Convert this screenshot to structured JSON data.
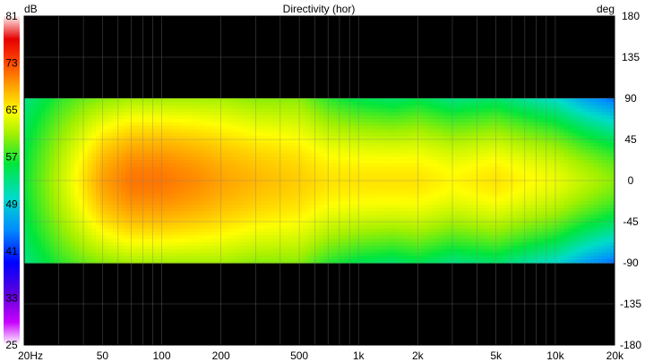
{
  "chart_data": {
    "type": "heatmap",
    "title": "Directivity (hor)",
    "colorbar_unit": "dB",
    "y_unit": "deg",
    "x_scale": "log",
    "xlim": [
      20,
      20000
    ],
    "ylim": [
      -180,
      180
    ],
    "x_ticks": [
      {
        "value": 20,
        "label": "20Hz"
      },
      {
        "value": 50,
        "label": "50"
      },
      {
        "value": 100,
        "label": "100"
      },
      {
        "value": 200,
        "label": "200"
      },
      {
        "value": 500,
        "label": "500"
      },
      {
        "value": 1000,
        "label": "1k"
      },
      {
        "value": 2000,
        "label": "2k"
      },
      {
        "value": 5000,
        "label": "5k"
      },
      {
        "value": 10000,
        "label": "10k"
      },
      {
        "value": 20000,
        "label": "20k"
      }
    ],
    "y_ticks": [
      {
        "value": 180,
        "label": "180"
      },
      {
        "value": 135,
        "label": "135"
      },
      {
        "value": 90,
        "label": "90"
      },
      {
        "value": 45,
        "label": "45"
      },
      {
        "value": 0,
        "label": "0"
      },
      {
        "value": -45,
        "label": "-45"
      },
      {
        "value": -90,
        "label": "-90"
      },
      {
        "value": -135,
        "label": "-135"
      },
      {
        "value": -180,
        "label": "-180"
      }
    ],
    "color_ticks": [
      {
        "value": 81,
        "label": "81"
      },
      {
        "value": 73,
        "label": "73"
      },
      {
        "value": 65,
        "label": "65"
      },
      {
        "value": 57,
        "label": "57"
      },
      {
        "value": 49,
        "label": "49"
      },
      {
        "value": 41,
        "label": "41"
      },
      {
        "value": 33,
        "label": "33"
      },
      {
        "value": 25,
        "label": "25"
      }
    ],
    "color_range": [
      25,
      81
    ],
    "data_angle_range": [
      -90,
      90
    ],
    "freq_samples": [
      20,
      30,
      40,
      50,
      70,
      100,
      150,
      200,
      300,
      500,
      700,
      1000,
      1500,
      2000,
      3000,
      5000,
      7000,
      10000,
      14000,
      20000
    ],
    "level_on_axis_db": [
      56,
      62,
      66,
      69,
      71,
      71,
      70,
      69,
      68,
      67,
      66,
      66,
      66,
      66,
      65,
      66,
      65,
      64,
      62,
      60
    ],
    "level_at_90deg_db": [
      53,
      57,
      59,
      60,
      61,
      61,
      61,
      61,
      60,
      60,
      57,
      55,
      54,
      55,
      53,
      54,
      52,
      50,
      46,
      43
    ],
    "grid": true,
    "background": "#000000",
    "grid_color": "#808080"
  }
}
